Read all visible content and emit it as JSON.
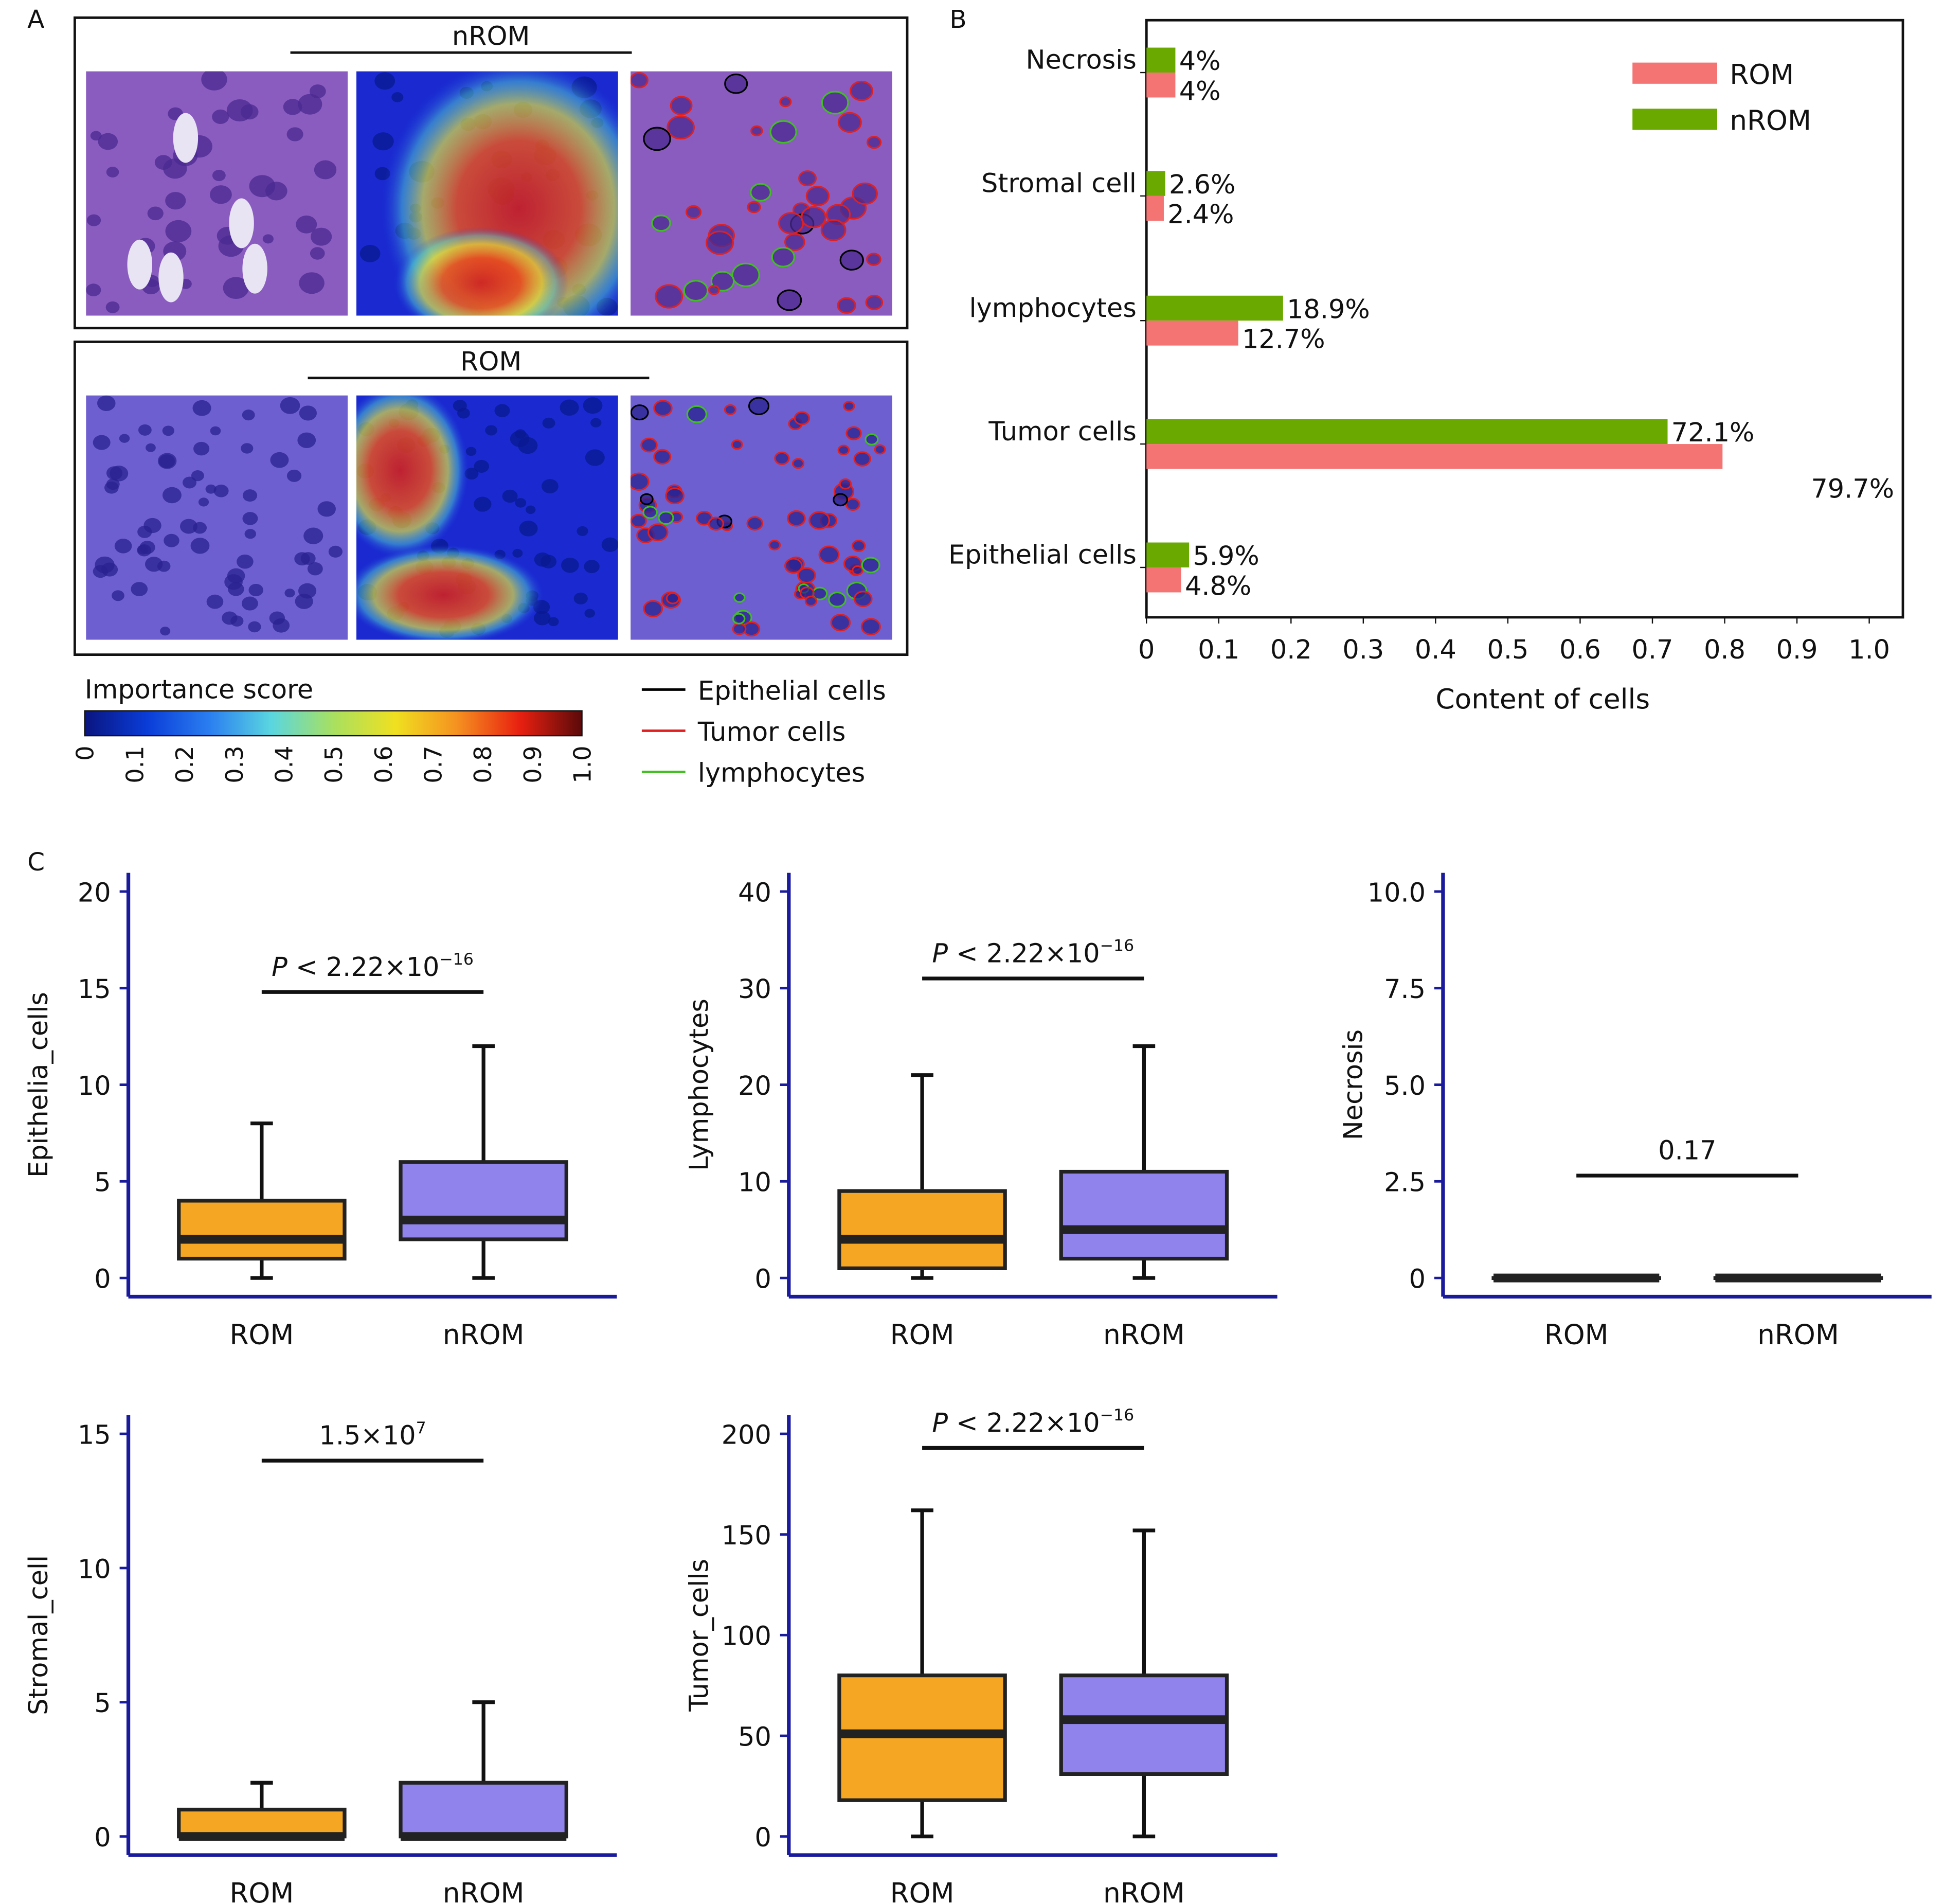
{
  "panel_labels": {
    "a": "A",
    "b": "B",
    "c": "C"
  },
  "panel_a": {
    "groups": [
      {
        "label": "nROM"
      },
      {
        "label": "ROM"
      }
    ],
    "colorbar": {
      "title": "Importance score",
      "ticks": [
        "0",
        "0.1",
        "0.2",
        "0.3",
        "0.4",
        "0.5",
        "0.6",
        "0.7",
        "0.8",
        "0.9",
        "1.0"
      ],
      "colors": [
        "#0a1580",
        "#0a3cd8",
        "#2a7ef0",
        "#5ad6e0",
        "#a8e060",
        "#f0e020",
        "#f59020",
        "#e82010",
        "#5a0a0a"
      ]
    },
    "legend": [
      {
        "label": "Epithelial cells",
        "color": "#000000"
      },
      {
        "label": "Tumor cells",
        "color": "#e02020"
      },
      {
        "label": "lymphocytes",
        "color": "#40c020"
      }
    ]
  },
  "chart_data": [
    {
      "type": "bar",
      "orientation": "horizontal",
      "categories": [
        "Necrosis",
        "Stromal cell",
        "lymphocytes",
        "Tumor cells",
        "Epithelial cells"
      ],
      "series": [
        {
          "name": "nROM",
          "color": "#6aaa00",
          "values": [
            0.04,
            0.026,
            0.189,
            0.721,
            0.059
          ],
          "labels": [
            "4%",
            "2.6%",
            "18.9%",
            "72.1%",
            "5.9%"
          ]
        },
        {
          "name": "ROM",
          "color": "#f47474",
          "values": [
            0.04,
            0.024,
            0.127,
            0.797,
            0.048
          ],
          "labels": [
            "4%",
            "2.4%",
            "12.7%",
            "79.7%",
            "4.8%"
          ]
        }
      ],
      "legend_order": [
        "ROM",
        "nROM"
      ],
      "legend_position": "top-right",
      "xlabel": "Content of cells",
      "xlim": [
        0,
        1.0
      ],
      "xticks": [
        "0",
        "0.1",
        "0.2",
        "0.3",
        "0.4",
        "0.5",
        "0.6",
        "0.7",
        "0.8",
        "0.9",
        "1.0"
      ]
    },
    {
      "type": "box",
      "ylabel": "Epithelia_cells",
      "ylim": [
        0,
        20
      ],
      "yticks": [
        "0",
        "5",
        "10",
        "15",
        "20"
      ],
      "yvals": [
        0,
        5,
        10,
        15,
        20
      ],
      "categories": [
        "ROM",
        "nROM"
      ],
      "boxes": [
        {
          "min": 0,
          "q1": 1,
          "median": 2,
          "q3": 4,
          "max": 8
        },
        {
          "min": 0,
          "q1": 2,
          "median": 3,
          "q3": 6,
          "max": 12
        }
      ],
      "pvalue": {
        "prefix": "P",
        "text": " < 2.22×10",
        "sup": "−16",
        "bracket_y": 14.8
      }
    },
    {
      "type": "box",
      "ylabel": "Lymphocytes",
      "ylim": [
        0,
        40
      ],
      "yticks": [
        "0",
        "10",
        "20",
        "30",
        "40"
      ],
      "yvals": [
        0,
        10,
        20,
        30,
        40
      ],
      "categories": [
        "ROM",
        "nROM"
      ],
      "boxes": [
        {
          "min": 0,
          "q1": 1,
          "median": 4,
          "q3": 9,
          "max": 21
        },
        {
          "min": 0,
          "q1": 2,
          "median": 5,
          "q3": 11,
          "max": 24
        }
      ],
      "pvalue": {
        "prefix": "P",
        "text": " < 2.22×10",
        "sup": "−16",
        "bracket_y": 31
      }
    },
    {
      "type": "box",
      "ylabel": "Necrosis",
      "ylim": [
        0,
        10
      ],
      "yticks": [
        "0",
        "2.5",
        "5.0",
        "7.5",
        "10.0"
      ],
      "yvals": [
        0,
        2.5,
        5,
        7.5,
        10
      ],
      "categories": [
        "ROM",
        "nROM"
      ],
      "boxes": [
        {
          "min": 0,
          "q1": 0,
          "median": 0,
          "q3": 0,
          "max": 0
        },
        {
          "min": 0,
          "q1": 0,
          "median": 0,
          "q3": 0,
          "max": 0
        }
      ],
      "pvalue": {
        "prefix": "",
        "text": "0.17",
        "sup": "",
        "bracket_y": 2.65
      }
    },
    {
      "type": "box",
      "ylabel": "Stromal_cell",
      "ylim": [
        0,
        15
      ],
      "yticks": [
        "0",
        "5",
        "10",
        "15"
      ],
      "yvals": [
        0,
        5,
        10,
        15
      ],
      "categories": [
        "ROM",
        "nROM"
      ],
      "boxes": [
        {
          "min": 0,
          "q1": 0,
          "median": 0,
          "q3": 1,
          "max": 2
        },
        {
          "min": 0,
          "q1": 0,
          "median": 0,
          "q3": 2,
          "max": 5
        }
      ],
      "pvalue": {
        "prefix": "",
        "text": "1.5×10",
        "sup": "7",
        "bracket_y": 14
      }
    },
    {
      "type": "box",
      "ylabel": "Tumor_cells",
      "ylim": [
        0,
        200
      ],
      "yticks": [
        "0",
        "50",
        "100",
        "150",
        "200"
      ],
      "yvals": [
        0,
        50,
        100,
        150,
        200
      ],
      "categories": [
        "ROM",
        "nROM"
      ],
      "boxes": [
        {
          "min": 0,
          "q1": 18,
          "median": 51,
          "q3": 80,
          "max": 162
        },
        {
          "min": 0,
          "q1": 31,
          "median": 58,
          "q3": 80,
          "max": 152
        }
      ],
      "pvalue": {
        "prefix": "P",
        "text": " < 2.22×10",
        "sup": "−16",
        "bracket_y": 193
      }
    }
  ],
  "colors": {
    "axis": "#1a1a9c",
    "rom_box": "#f5a623",
    "nrom_box": "#9083ec"
  }
}
